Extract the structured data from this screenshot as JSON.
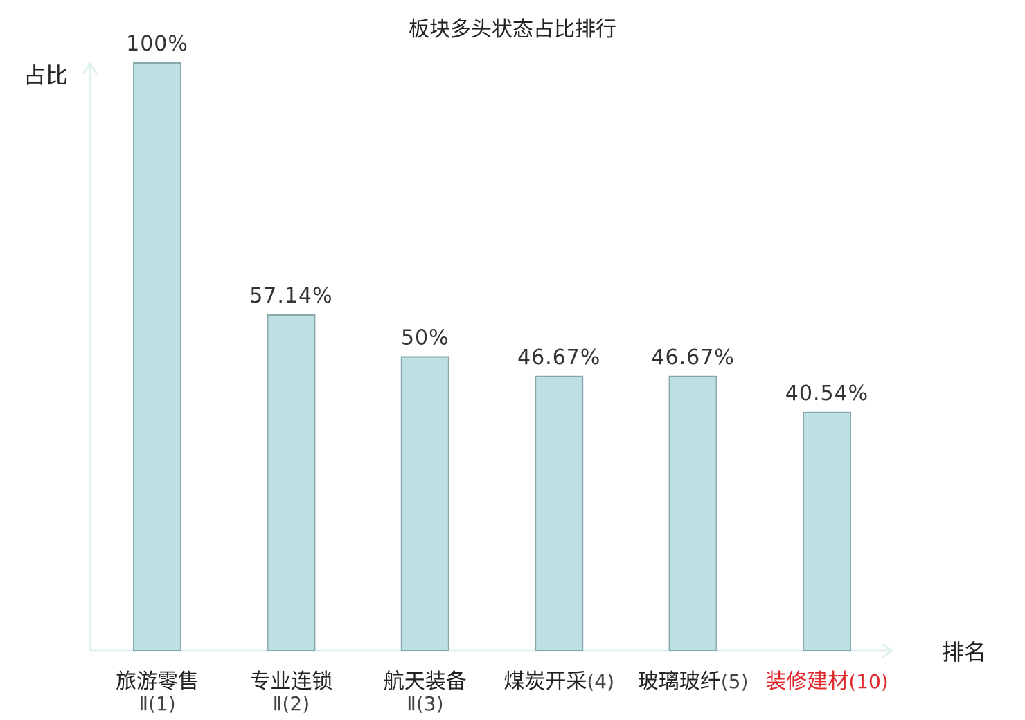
{
  "chart_data": {
    "type": "bar",
    "title": "板块多头状态占比排行",
    "xlabel": "排名",
    "ylabel": "占比",
    "ylim": [
      0,
      100
    ],
    "categories": [
      {
        "name": "旅游零售",
        "rank": "Ⅱ(1)",
        "highlight": false
      },
      {
        "name": "专业连锁",
        "rank": "Ⅱ(2)",
        "highlight": false
      },
      {
        "name": "航天装备",
        "rank": "Ⅱ(3)",
        "highlight": false
      },
      {
        "name": "煤炭开采",
        "rank": "(4)",
        "highlight": false
      },
      {
        "name": "玻璃玻纤",
        "rank": "(5)",
        "highlight": false
      },
      {
        "name": "装修建材",
        "rank": "(10)",
        "highlight": true
      }
    ],
    "values": [
      100,
      57.14,
      50,
      46.67,
      46.67,
      40.54
    ],
    "value_labels": [
      "100%",
      "57.14%",
      "50%",
      "46.67%",
      "46.67%",
      "40.54%"
    ],
    "grid": false,
    "legend": "none"
  },
  "colors": {
    "bar_fill": "#bde0e2",
    "bar_stroke": "#86a8ab",
    "axis": "#dff2ef",
    "text": "#222222",
    "rank_text": "#444444",
    "highlight": "#e0282c"
  }
}
